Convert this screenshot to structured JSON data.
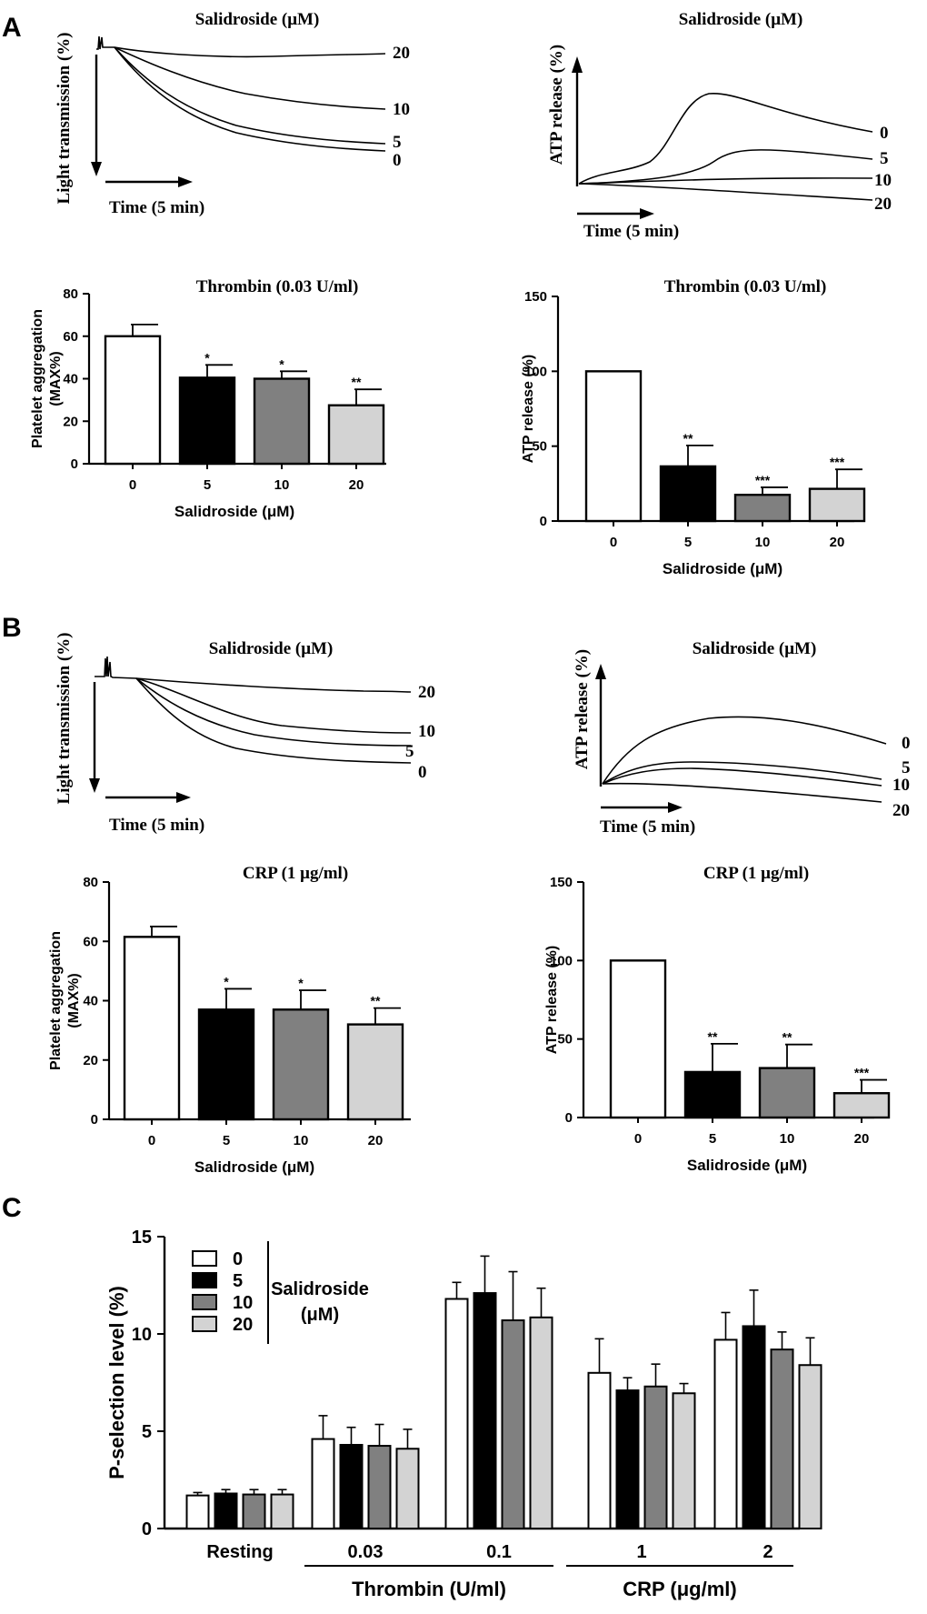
{
  "panels": {
    "A": "A",
    "B": "B",
    "C": "C"
  },
  "labels": {
    "salidroside_um": "Salidroside (μM)",
    "light_transmission": "Light transmission (%)",
    "atp_release": "ATP release (%)",
    "time_5min": "Time (5 min)",
    "platelet_aggregation_line1": "Platelet aggregation",
    "platelet_aggregation_line2": "(MAX%)"
  },
  "colors": {
    "dose_0": "#ffffff",
    "dose_5": "#000000",
    "dose_10": "#808080",
    "dose_20": "#d3d3d3"
  },
  "traces": {
    "A_aggregation": {
      "title": "Salidroside (μM)",
      "ylabel": "Light transmission (%)",
      "xlabel": "Time (5 min)",
      "curve_labels": [
        "20",
        "10",
        "5",
        "0"
      ]
    },
    "A_atp": {
      "title": "Salidroside (μM)",
      "ylabel": "ATP release (%)",
      "xlabel": "Time (5 min)",
      "curve_labels": [
        "0",
        "5",
        "10",
        "20"
      ]
    },
    "B_aggregation": {
      "title": "Salidroside (μM)",
      "ylabel": "Light transmission (%)",
      "xlabel": "Time (5 min)",
      "curve_labels": [
        "20",
        "10",
        "5",
        "0"
      ]
    },
    "B_atp": {
      "title": "Salidroside (μM)",
      "ylabel": "ATP release (%)",
      "xlabel": "Time (5 min)",
      "curve_labels": [
        "0",
        "5",
        "10",
        "20"
      ]
    }
  },
  "chart_data": [
    {
      "id": "A_agg_bar",
      "type": "bar",
      "title": "Thrombin (0.03 U/ml)",
      "xlabel": "Salidroside (μM)",
      "ylabel": [
        "Platelet aggregation",
        "(MAX%)"
      ],
      "categories": [
        "0",
        "5",
        "10",
        "20"
      ],
      "values": [
        60,
        40.5,
        40,
        27.5
      ],
      "errors": [
        5.5,
        6,
        3.5,
        7.5
      ],
      "significance": [
        "",
        "*",
        "*",
        "**"
      ],
      "ylim": [
        0,
        80
      ],
      "yticks": [
        "0",
        "20",
        "40",
        "60",
        "80"
      ]
    },
    {
      "id": "A_atp_bar",
      "type": "bar",
      "title": "Thrombin (0.03 U/ml)",
      "xlabel": "Salidroside (μM)",
      "ylabel": [
        "ATP release (%)"
      ],
      "categories": [
        "0",
        "5",
        "10",
        "20"
      ],
      "values": [
        100,
        36.5,
        17.5,
        21.5
      ],
      "errors": [
        0,
        14,
        5,
        13
      ],
      "significance": [
        "",
        "**",
        "***",
        "***"
      ],
      "ylim": [
        0,
        150
      ],
      "yticks": [
        "0",
        "50",
        "100",
        "150"
      ]
    },
    {
      "id": "B_agg_bar",
      "type": "bar",
      "title": "CRP (1 μg/ml)",
      "xlabel": "Salidroside (μM)",
      "ylabel": [
        "Platelet aggregation",
        "(MAX%)"
      ],
      "categories": [
        "0",
        "5",
        "10",
        "20"
      ],
      "values": [
        61.5,
        37,
        37,
        32
      ],
      "errors": [
        3.5,
        7,
        6.5,
        5.5
      ],
      "significance": [
        "",
        "*",
        "*",
        "**"
      ],
      "ylim": [
        0,
        80
      ],
      "yticks": [
        "0",
        "20",
        "40",
        "60",
        "80"
      ]
    },
    {
      "id": "B_atp_bar",
      "type": "bar",
      "title": "CRP (1 μg/ml)",
      "xlabel": "Salidroside (μM)",
      "ylabel": [
        "ATP release (%)"
      ],
      "categories": [
        "0",
        "5",
        "10",
        "20"
      ],
      "values": [
        100,
        29,
        31.5,
        15.5
      ],
      "errors": [
        0,
        18,
        15,
        8.5
      ],
      "significance": [
        "",
        "**",
        "**",
        "***"
      ],
      "ylim": [
        0,
        150
      ],
      "yticks": [
        "0",
        "50",
        "100",
        "150"
      ]
    },
    {
      "id": "C_pselection",
      "type": "bar",
      "ylabel": "P-selection level (%)",
      "categories": [
        "Resting",
        "0.03",
        "0.1",
        "1",
        "2"
      ],
      "groups": [
        {
          "label": "Thrombin (U/ml)",
          "categories": [
            "0.03",
            "0.1"
          ]
        },
        {
          "label": "CRP (μg/ml)",
          "categories": [
            "1",
            "2"
          ]
        }
      ],
      "legend_title": [
        "Salidroside",
        "(μM)"
      ],
      "series": [
        {
          "name": "0",
          "values": [
            1.7,
            4.6,
            11.8,
            8.0,
            9.7
          ],
          "errors": [
            0.15,
            1.2,
            0.85,
            1.75,
            1.4
          ]
        },
        {
          "name": "5",
          "values": [
            1.8,
            4.3,
            12.1,
            7.1,
            10.4
          ],
          "errors": [
            0.2,
            0.9,
            1.9,
            0.65,
            1.85
          ]
        },
        {
          "name": "10",
          "values": [
            1.75,
            4.25,
            10.7,
            7.3,
            9.2
          ],
          "errors": [
            0.25,
            1.1,
            2.5,
            1.15,
            0.9
          ]
        },
        {
          "name": "20",
          "values": [
            1.75,
            4.1,
            10.85,
            6.95,
            8.4
          ],
          "errors": [
            0.25,
            1.0,
            1.5,
            0.5,
            1.4
          ]
        }
      ],
      "ylim": [
        0,
        15
      ],
      "yticks": [
        "0",
        "5",
        "10",
        "15"
      ]
    }
  ]
}
